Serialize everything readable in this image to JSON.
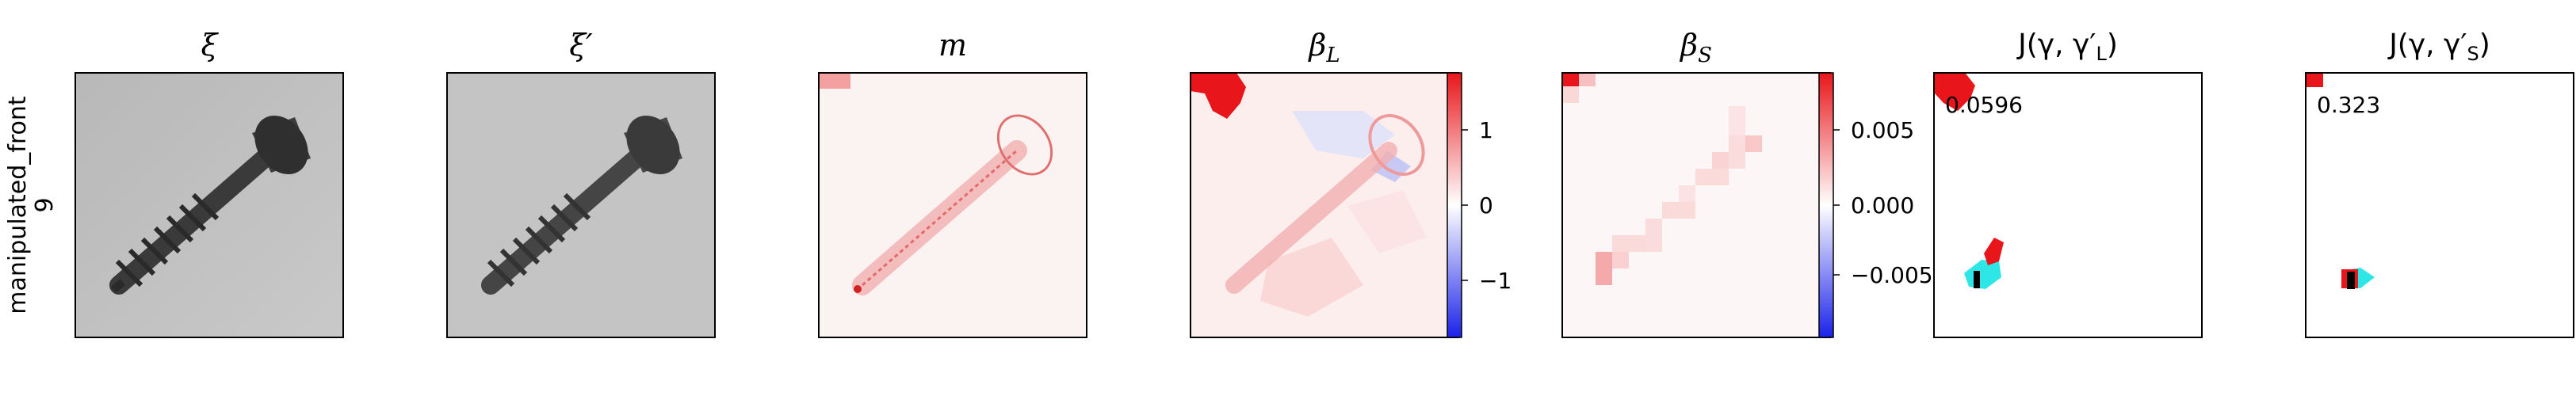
{
  "row_label": {
    "line1": "manipulated_front",
    "line2": "9"
  },
  "panels": {
    "xi": {
      "title": "ξ"
    },
    "xi_prime": {
      "title": "ξ′"
    },
    "m": {
      "title": "m"
    },
    "beta_l": {
      "title_main": "β",
      "title_sub": "L",
      "ticks": [
        "1",
        "0",
        "−1"
      ]
    },
    "beta_s": {
      "title_main": "β",
      "title_sub": "S",
      "ticks": [
        "0.005",
        "0.000",
        "−0.005"
      ]
    },
    "j_l": {
      "title": "J(γ, γ′",
      "title_sub": "L",
      "title_end": ")",
      "value": "0.0596"
    },
    "j_s": {
      "title": "J(γ, γ′",
      "title_sub": "S",
      "title_end": ")",
      "value": "0.323"
    }
  },
  "colors": {
    "positive": "#e8161a",
    "negative": "#1a22e8",
    "overlay_cyan": "#2ee6e6",
    "frame": "#000000"
  }
}
